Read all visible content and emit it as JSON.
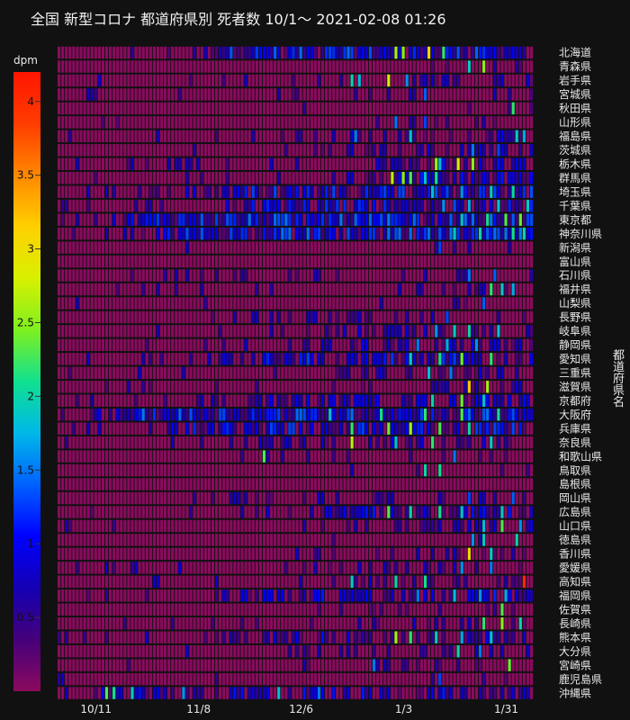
{
  "title": "全国 新型コロナ 都道府県別 死者数 10/1～  2021-02-08 01:26",
  "colorbar": {
    "title": "dpm",
    "ticks": [
      "0.5",
      "1",
      "1.5",
      "2",
      "2.5",
      "3",
      "3.5",
      "4"
    ],
    "range": [
      0,
      4.2
    ],
    "colors": [
      "#8b0a5e",
      "#45007a",
      "#1400b4",
      "#0000ff",
      "#0060ff",
      "#00b8e8",
      "#10e090",
      "#7ef020",
      "#d8f000",
      "#ffd000",
      "#ff8800",
      "#ff3c00",
      "#ff1500"
    ]
  },
  "chart_data": {
    "type": "heatmap",
    "title": "全国 新型コロナ 都道府県別 死者数 10/1～  2021-02-08 01:26",
    "ylabel": "都道府県名",
    "x_tick_labels": [
      "10/11",
      "11/8",
      "12/6",
      "1/3",
      "1/31"
    ],
    "x_range": [
      "10/1",
      "2/7"
    ],
    "n_days": 130,
    "z_range": [
      0,
      4.2
    ],
    "colorbar_title": "dpm",
    "series": [
      {
        "name": "北海道",
        "level": 0.9,
        "start": 30,
        "hot": [
          [
            92,
            2.6
          ],
          [
            101,
            3.1
          ],
          [
            105,
            2.2
          ],
          [
            94,
            2.5
          ]
        ]
      },
      {
        "name": "青森県",
        "level": 0.15,
        "start": 90,
        "hot": [
          [
            116,
            2.5
          ],
          [
            112,
            1.9
          ]
        ]
      },
      {
        "name": "岩手県",
        "level": 0.3,
        "start": 60,
        "hot": [
          [
            80,
            2.0
          ],
          [
            82,
            1.8
          ],
          [
            90,
            2.8
          ],
          [
            95,
            1.6
          ]
        ]
      },
      {
        "name": "宮城県",
        "level": 0.2,
        "start": 45,
        "hot": [
          [
            100,
            1.4
          ]
        ]
      },
      {
        "name": "秋田県",
        "level": 0.05,
        "start": 110,
        "hot": [
          [
            124,
            2.2
          ]
        ]
      },
      {
        "name": "山形県",
        "level": 0.15,
        "start": 75,
        "hot": [
          [
            92,
            1.5
          ],
          [
            100,
            1.3
          ]
        ]
      },
      {
        "name": "福島県",
        "level": 0.45,
        "start": 60,
        "hot": [
          [
            81,
            1.5
          ],
          [
            96,
            1.8
          ],
          [
            125,
            1.9
          ],
          [
            127,
            1.7
          ]
        ]
      },
      {
        "name": "茨城県",
        "level": 0.35,
        "start": 60,
        "hot": [
          [
            113,
            1.5
          ],
          [
            120,
            1.3
          ]
        ]
      },
      {
        "name": "栃木県",
        "level": 0.55,
        "start": 80,
        "hot": [
          [
            103,
            2.6
          ],
          [
            109,
            2.9
          ],
          [
            113,
            2.5
          ],
          [
            104,
            1.8
          ]
        ]
      },
      {
        "name": "群馬県",
        "level": 0.6,
        "start": 70,
        "hot": [
          [
            91,
            2.7
          ],
          [
            94,
            2.5
          ],
          [
            96,
            2.3
          ],
          [
            103,
            2.1
          ],
          [
            100,
            1.8
          ]
        ]
      },
      {
        "name": "埼玉県",
        "level": 0.8,
        "start": 25,
        "hot": [
          [
            102,
            1.8
          ],
          [
            110,
            1.6
          ],
          [
            118,
            1.9
          ],
          [
            124,
            2.0
          ]
        ]
      },
      {
        "name": "千葉県",
        "level": 0.8,
        "start": 40,
        "hot": [
          [
            105,
            1.6
          ],
          [
            112,
            1.7
          ],
          [
            120,
            1.8
          ],
          [
            128,
            1.9
          ]
        ]
      },
      {
        "name": "東京都",
        "level": 0.95,
        "start": 10,
        "hot": [
          [
            110,
            1.8
          ],
          [
            117,
            2.1
          ],
          [
            122,
            2.3
          ],
          [
            126,
            2.4
          ]
        ]
      },
      {
        "name": "神奈川県",
        "level": 0.95,
        "start": 20,
        "hot": [
          [
            108,
            1.9
          ],
          [
            115,
            2.0
          ],
          [
            124,
            2.1
          ],
          [
            127,
            2.0
          ]
        ]
      },
      {
        "name": "新潟県",
        "level": 0.15,
        "start": 95,
        "hot": [
          [
            104,
            1.3
          ]
        ]
      },
      {
        "name": "富山県",
        "level": 0.05,
        "start": 110,
        "hot": []
      },
      {
        "name": "石川県",
        "level": 0.2,
        "start": 20,
        "hot": [
          [
            112,
            1.5
          ],
          [
            119,
            1.4
          ]
        ]
      },
      {
        "name": "福井県",
        "level": 0.25,
        "start": 80,
        "hot": [
          [
            118,
            2.2
          ],
          [
            121,
            1.9
          ],
          [
            124,
            1.7
          ]
        ]
      },
      {
        "name": "山梨県",
        "level": 0.1,
        "start": 100,
        "hot": [
          [
            116,
            1.4
          ]
        ]
      },
      {
        "name": "長野県",
        "level": 0.25,
        "start": 40,
        "hot": [
          [
            106,
            1.3
          ]
        ]
      },
      {
        "name": "岐阜県",
        "level": 0.4,
        "start": 60,
        "hot": [
          [
            103,
            1.6
          ],
          [
            108,
            1.9
          ],
          [
            112,
            2.0
          ],
          [
            120,
            1.8
          ]
        ]
      },
      {
        "name": "静岡県",
        "level": 0.45,
        "start": 60,
        "hot": [
          [
            98,
            1.5
          ],
          [
            106,
            1.7
          ],
          [
            114,
            1.6
          ]
        ]
      },
      {
        "name": "愛知県",
        "level": 0.75,
        "start": 40,
        "hot": [
          [
            96,
            1.9
          ],
          [
            104,
            2.1
          ],
          [
            110,
            2.4
          ],
          [
            118,
            2.2
          ]
        ]
      },
      {
        "name": "三重県",
        "level": 0.35,
        "start": 70,
        "hot": [
          [
            101,
            1.8
          ],
          [
            107,
            1.5
          ]
        ]
      },
      {
        "name": "滋賀県",
        "level": 0.3,
        "start": 70,
        "hot": [
          [
            112,
            3.2
          ],
          [
            117,
            2.6
          ]
        ]
      },
      {
        "name": "京都府",
        "level": 0.55,
        "start": 40,
        "hot": [
          [
            102,
            2.0
          ],
          [
            110,
            2.4
          ],
          [
            116,
            1.8
          ]
        ]
      },
      {
        "name": "大阪府",
        "level": 0.95,
        "start": 5,
        "hot": [
          [
            74,
            1.8
          ],
          [
            88,
            2.1
          ],
          [
            100,
            2.2
          ],
          [
            110,
            2.3
          ],
          [
            120,
            2.0
          ]
        ]
      },
      {
        "name": "兵庫県",
        "level": 0.8,
        "start": 20,
        "hot": [
          [
            80,
            2.2
          ],
          [
            90,
            2.4
          ],
          [
            96,
            2.6
          ],
          [
            104,
            2.3
          ],
          [
            112,
            2.0
          ]
        ]
      },
      {
        "name": "奈良県",
        "level": 0.35,
        "start": 40,
        "hot": [
          [
            80,
            2.7
          ],
          [
            92,
            1.8
          ],
          [
            102,
            2.2
          ],
          [
            118,
            1.9
          ]
        ]
      },
      {
        "name": "和歌山県",
        "level": 0.1,
        "start": 50,
        "hot": [
          [
            56,
            2.3
          ],
          [
            108,
            1.5
          ]
        ]
      },
      {
        "name": "鳥取県",
        "level": 0.05,
        "start": 95,
        "hot": [
          [
            100,
            2.0
          ],
          [
            104,
            2.1
          ]
        ]
      },
      {
        "name": "島根県",
        "level": 0.0,
        "start": 130,
        "hot": []
      },
      {
        "name": "岡山県",
        "level": 0.25,
        "start": 25,
        "hot": [
          [
            112,
            1.3
          ],
          [
            124,
            1.4
          ]
        ]
      },
      {
        "name": "広島県",
        "level": 0.6,
        "start": 60,
        "hot": [
          [
            90,
            2.3
          ],
          [
            96,
            2.0
          ],
          [
            104,
            2.1
          ],
          [
            110,
            1.8
          ],
          [
            121,
            1.9
          ]
        ]
      },
      {
        "name": "山口県",
        "level": 0.35,
        "start": 70,
        "hot": [
          [
            116,
            1.8
          ],
          [
            121,
            2.3
          ],
          [
            126,
            1.6
          ]
        ]
      },
      {
        "name": "徳島県",
        "level": 0.2,
        "start": 90,
        "hot": [
          [
            113,
            1.6
          ],
          [
            116,
            1.9
          ],
          [
            125,
            2.0
          ]
        ]
      },
      {
        "name": "香川県",
        "level": 0.2,
        "start": 80,
        "hot": [
          [
            112,
            3.0
          ],
          [
            118,
            1.9
          ]
        ]
      },
      {
        "name": "愛媛県",
        "level": 0.25,
        "start": 60,
        "hot": [
          [
            110,
            1.6
          ],
          [
            118,
            1.5
          ]
        ]
      },
      {
        "name": "高知県",
        "level": 0.3,
        "start": 60,
        "hot": [
          [
            80,
            1.9
          ],
          [
            92,
            2.0
          ],
          [
            100,
            2.1
          ],
          [
            127,
            4.0
          ]
        ]
      },
      {
        "name": "福岡県",
        "level": 0.65,
        "start": 40,
        "hot": [
          [
            98,
            1.5
          ],
          [
            108,
            1.8
          ],
          [
            115,
            1.6
          ],
          [
            122,
            1.7
          ]
        ]
      },
      {
        "name": "佐賀県",
        "level": 0.1,
        "start": 50,
        "hot": [
          [
            121,
            2.3
          ]
        ]
      },
      {
        "name": "長崎県",
        "level": 0.3,
        "start": 80,
        "hot": [
          [
            116,
            2.2
          ],
          [
            121,
            2.5
          ],
          [
            126,
            2.0
          ]
        ]
      },
      {
        "name": "熊本県",
        "level": 0.55,
        "start": 40,
        "hot": [
          [
            92,
            2.6
          ],
          [
            96,
            2.2
          ],
          [
            103,
            1.9
          ],
          [
            110,
            1.7
          ],
          [
            118,
            1.8
          ]
        ]
      },
      {
        "name": "大分県",
        "level": 0.25,
        "start": 50,
        "hot": [
          [
            109,
            2.0
          ],
          [
            115,
            1.5
          ]
        ]
      },
      {
        "name": "宮崎県",
        "level": 0.2,
        "start": 70,
        "hot": [
          [
            86,
            1.5
          ],
          [
            123,
            2.4
          ]
        ]
      },
      {
        "name": "鹿児島県",
        "level": 0.1,
        "start": 80,
        "hot": [
          [
            104,
            1.3
          ]
        ]
      },
      {
        "name": "沖縄県",
        "level": 0.6,
        "start": 0,
        "hot": [
          [
            13,
            2.3
          ],
          [
            15,
            2.1
          ],
          [
            20,
            1.9
          ],
          [
            34,
            1.6
          ],
          [
            60,
            1.8
          ],
          [
            71,
            1.5
          ]
        ]
      }
    ]
  }
}
